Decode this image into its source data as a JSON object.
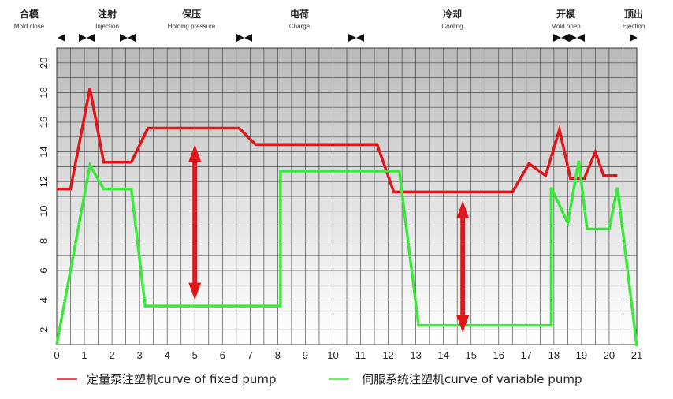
{
  "chart_data": {
    "type": "line",
    "title": "",
    "xlabel": "",
    "ylabel": "",
    "xlim": [
      0,
      21
    ],
    "ylim": [
      1,
      21
    ],
    "x_ticks": [
      "0",
      "1",
      "2",
      "3",
      "4",
      "5",
      "6",
      "7",
      "8",
      "9",
      "10",
      "11",
      "12",
      "13",
      "14",
      "15",
      "16",
      "17",
      "18",
      "19",
      "20",
      "21"
    ],
    "y_ticks": [
      "2",
      "4",
      "6",
      "8",
      "10",
      "12",
      "14",
      "16",
      "18",
      "20"
    ],
    "grid": true,
    "legend_position": "bottom",
    "phases": [
      {
        "cn": "合模",
        "en": "Mold close"
      },
      {
        "cn": "注射",
        "en": "Injection"
      },
      {
        "cn": "保压",
        "en": "Holding pressure"
      },
      {
        "cn": "电荷",
        "en": "Charge"
      },
      {
        "cn": "冷却",
        "en": "Cooling"
      },
      {
        "cn": "开模",
        "en": "Mold open"
      },
      {
        "cn": "顶出",
        "en": "Ejection"
      }
    ],
    "series": [
      {
        "name": "定量泵注塑机curve of fixed pump",
        "color": "#e0161b",
        "points": [
          [
            0,
            11.5
          ],
          [
            0.5,
            11.5
          ],
          [
            1.2,
            18.3
          ],
          [
            1.7,
            13.3
          ],
          [
            2.7,
            13.3
          ],
          [
            3.3,
            15.6
          ],
          [
            6.6,
            15.6
          ],
          [
            7.2,
            14.5
          ],
          [
            11.6,
            14.5
          ],
          [
            12.2,
            11.3
          ],
          [
            16.5,
            11.3
          ],
          [
            17.1,
            13.2
          ],
          [
            17.7,
            12.4
          ],
          [
            18.2,
            15.5
          ],
          [
            18.6,
            12.2
          ],
          [
            19.1,
            12.2
          ],
          [
            19.5,
            14
          ],
          [
            19.8,
            12.4
          ],
          [
            20.3,
            12.4
          ]
        ]
      },
      {
        "name": "伺服系统注塑机curve of variable pump",
        "color": "#3de83d",
        "points": [
          [
            0,
            1
          ],
          [
            1.2,
            13.1
          ],
          [
            1.7,
            11.5
          ],
          [
            2.7,
            11.5
          ],
          [
            3.2,
            3.6
          ],
          [
            8.1,
            3.6
          ],
          [
            8.1,
            12.7
          ],
          [
            12.4,
            12.7
          ],
          [
            13.1,
            2.3
          ],
          [
            17.9,
            2.3
          ],
          [
            17.9,
            11.6
          ],
          [
            18.5,
            9.2
          ],
          [
            18.9,
            13.4
          ],
          [
            19.2,
            8.8
          ],
          [
            20.0,
            8.8
          ],
          [
            20.3,
            11.6
          ],
          [
            21,
            0.9
          ]
        ]
      }
    ],
    "arrows": [
      {
        "x": 5.0,
        "y_from": 14.5,
        "y_to": 4.0,
        "color": "#e0161b"
      },
      {
        "x": 14.7,
        "y_from": 10.7,
        "y_to": 1.8,
        "color": "#e0161b"
      }
    ]
  }
}
